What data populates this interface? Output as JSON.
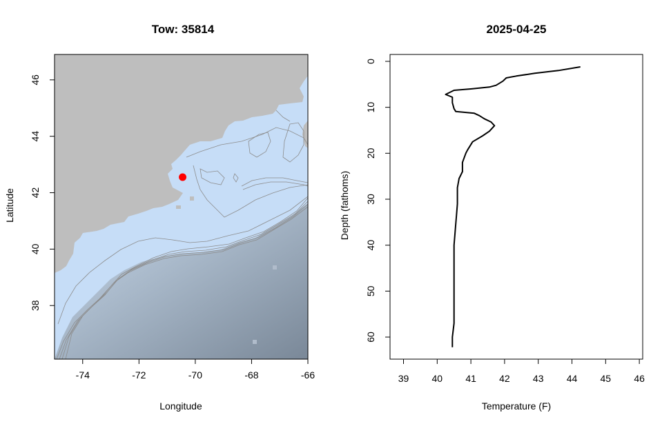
{
  "chart_data": [
    {
      "type": "map",
      "title": "Tow: 35814",
      "xlabel": "Longitude",
      "ylabel": "Latitude",
      "xlim": [
        -75,
        -66
      ],
      "ylim": [
        36.1,
        46.9
      ],
      "x_ticks": [
        -74,
        -72,
        -70,
        -68,
        -66
      ],
      "y_ticks": [
        38,
        40,
        42,
        44,
        46
      ],
      "x_tick_labels": [
        "-74",
        "-72",
        "-70",
        "-68",
        "-66"
      ],
      "y_tick_labels": [
        "38",
        "40",
        "42",
        "44",
        "46"
      ],
      "land_color": "#bebebe",
      "shelf_water_color": "#c6ddf7",
      "deep_water_color": "#7a8898",
      "contour_color": "#8c8c8c",
      "point": {
        "lon": -70.45,
        "lat": 42.55,
        "color": "#ff0000"
      }
    },
    {
      "type": "line",
      "title": "2025-04-25",
      "xlabel": "Temperature (F)",
      "ylabel": "Depth (fathoms)",
      "xlim": [
        38.6,
        46.1
      ],
      "ylim": [
        64.8,
        -1.5
      ],
      "y_reversed": true,
      "x_ticks": [
        39,
        40,
        41,
        42,
        43,
        44,
        45,
        46
      ],
      "y_ticks": [
        0,
        10,
        20,
        30,
        40,
        50,
        60
      ],
      "x_tick_labels": [
        "39",
        "40",
        "41",
        "42",
        "43",
        "44",
        "45",
        "46"
      ],
      "y_tick_labels": [
        "0",
        "10",
        "20",
        "30",
        "40",
        "50",
        "60"
      ],
      "series": [
        {
          "color": "#000000",
          "temperature": [
            44.25,
            43.6,
            42.9,
            42.35,
            42.05,
            41.95,
            41.75,
            41.55,
            41.0,
            40.5,
            40.25,
            40.45,
            40.45,
            40.5,
            40.55,
            41.1,
            41.25,
            41.4,
            41.6,
            41.7,
            41.55,
            41.35,
            41.05,
            40.9,
            40.85,
            40.75,
            40.75,
            40.65,
            40.6,
            40.6,
            40.5,
            40.5,
            40.5,
            40.45,
            40.45
          ],
          "depth": [
            1.2,
            2.0,
            2.6,
            3.2,
            3.6,
            4.3,
            5.2,
            5.6,
            6.0,
            6.3,
            7.2,
            7.8,
            9.0,
            10.3,
            10.9,
            11.3,
            11.8,
            12.5,
            13.2,
            14.0,
            15.2,
            16.2,
            17.5,
            19.3,
            20.0,
            22.0,
            24.0,
            25.5,
            27.5,
            31.0,
            40.0,
            50.0,
            57.0,
            60.0,
            62.2
          ]
        }
      ]
    }
  ]
}
